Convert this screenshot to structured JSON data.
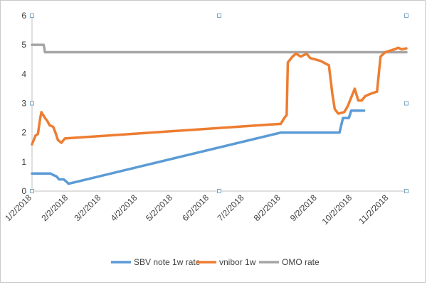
{
  "chart_data": {
    "type": "line",
    "title": "",
    "xlabel": "",
    "ylabel": "",
    "ylim": [
      0,
      6
    ],
    "yticks": [
      "0",
      "1",
      "2",
      "3",
      "4",
      "5",
      "6"
    ],
    "x_tick_labels": [
      "1/2/2018",
      "2/2/2018",
      "3/2/2018",
      "4/2/2018",
      "5/2/2018",
      "6/2/2018",
      "7/2/2018",
      "8/2/2018",
      "9/2/2018",
      "10/2/2018",
      "11/2/2018"
    ],
    "grid": false,
    "legend_position": "bottom",
    "series": [
      {
        "name": "SBV note 1w rate",
        "color": "#5B9BD5",
        "points": [
          [
            "2018-01-02",
            0.6
          ],
          [
            "2018-01-12",
            0.6
          ],
          [
            "2018-01-18",
            0.6
          ],
          [
            "2018-01-20",
            0.55
          ],
          [
            "2018-01-23",
            0.5
          ],
          [
            "2018-01-25",
            0.4
          ],
          [
            "2018-01-29",
            0.4
          ],
          [
            "2018-02-01",
            0.3
          ],
          [
            "2018-02-02",
            0.25
          ],
          [
            "2018-08-02",
            2.0
          ],
          [
            "2018-09-20",
            2.0
          ],
          [
            "2018-09-21",
            2.0
          ],
          [
            "2018-09-24",
            2.5
          ],
          [
            "2018-09-29",
            2.5
          ],
          [
            "2018-10-01",
            2.75
          ],
          [
            "2018-10-12",
            2.75
          ]
        ]
      },
      {
        "name": "vnibor 1w",
        "color": "#ED7D31",
        "points": [
          [
            "2018-01-02",
            1.6
          ],
          [
            "2018-01-05",
            1.9
          ],
          [
            "2018-01-07",
            1.95
          ],
          [
            "2018-01-09",
            2.5
          ],
          [
            "2018-01-10",
            2.7
          ],
          [
            "2018-01-13",
            2.5
          ],
          [
            "2018-01-15",
            2.4
          ],
          [
            "2018-01-17",
            2.25
          ],
          [
            "2018-01-20",
            2.2
          ],
          [
            "2018-01-22",
            2.0
          ],
          [
            "2018-01-24",
            1.75
          ],
          [
            "2018-01-27",
            1.65
          ],
          [
            "2018-01-30",
            1.8
          ],
          [
            "2018-08-02",
            2.3
          ],
          [
            "2018-08-05",
            2.5
          ],
          [
            "2018-08-07",
            2.6
          ],
          [
            "2018-08-08",
            4.4
          ],
          [
            "2018-08-12",
            4.6
          ],
          [
            "2018-08-15",
            4.7
          ],
          [
            "2018-08-19",
            4.6
          ],
          [
            "2018-08-24",
            4.7
          ],
          [
            "2018-08-27",
            4.55
          ],
          [
            "2018-09-05",
            4.45
          ],
          [
            "2018-09-12",
            4.3
          ],
          [
            "2018-09-15",
            3.3
          ],
          [
            "2018-09-17",
            2.8
          ],
          [
            "2018-09-20",
            2.65
          ],
          [
            "2018-09-25",
            2.7
          ],
          [
            "2018-09-28",
            2.9
          ],
          [
            "2018-10-03",
            3.4
          ],
          [
            "2018-10-04",
            3.5
          ],
          [
            "2018-10-07",
            3.1
          ],
          [
            "2018-10-10",
            3.1
          ],
          [
            "2018-10-13",
            3.25
          ],
          [
            "2018-10-16",
            3.3
          ],
          [
            "2018-10-19",
            3.35
          ],
          [
            "2018-10-23",
            3.4
          ],
          [
            "2018-10-26",
            4.6
          ],
          [
            "2018-10-30",
            4.75
          ],
          [
            "2018-11-03",
            4.8
          ],
          [
            "2018-11-07",
            4.85
          ],
          [
            "2018-11-10",
            4.9
          ],
          [
            "2018-11-13",
            4.85
          ],
          [
            "2018-11-17",
            4.88
          ]
        ]
      },
      {
        "name": "OMO rate",
        "color": "#A5A5A5",
        "points": [
          [
            "2018-01-02",
            5.0
          ],
          [
            "2018-01-12",
            5.0
          ],
          [
            "2018-01-13",
            4.75
          ],
          [
            "2018-11-17",
            4.75
          ]
        ]
      }
    ]
  }
}
